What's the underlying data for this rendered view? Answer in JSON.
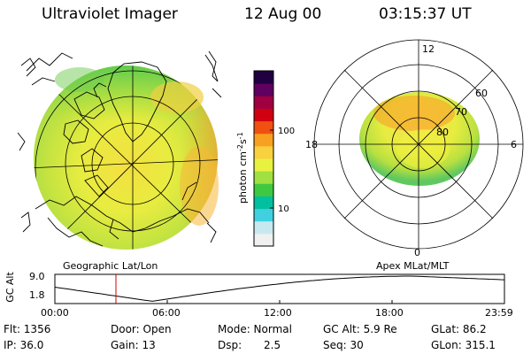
{
  "header": {
    "instrument": "Ultraviolet Imager",
    "date": "12 Aug 00",
    "time": "03:15:37 UT"
  },
  "colorbar": {
    "unit_label": "photon cm",
    "unit_exp1": "-2",
    "unit_mid": "s",
    "unit_exp2": "-1",
    "tick_labels": [
      "100",
      "10"
    ],
    "colors": [
      "#f0f0f0",
      "#c8e8f0",
      "#40d0e0",
      "#00c0a0",
      "#40c840",
      "#a0e040",
      "#e8f040",
      "#f8d040",
      "#f8a020",
      "#f05010",
      "#d00010",
      "#a00040",
      "#600060",
      "#200040"
    ]
  },
  "geo_map": {
    "label": "Geographic Lat/Lon"
  },
  "polar_plot": {
    "label": "Apex MLat/MLT",
    "mlt_labels": {
      "top": "12",
      "left": "18",
      "right": "6",
      "bottom": "0"
    },
    "lat_labels": [
      "60",
      "70",
      "80"
    ]
  },
  "altitude_plot": {
    "ylabel": "GC Alt",
    "ytick_top": "9.0",
    "ytick_bottom": "1.8",
    "xtick_labels": [
      "00:00",
      "06:00",
      "12:00",
      "18:00",
      "23:59"
    ],
    "current_time_marker_hours": 3.26,
    "orbit_min_hour": 5.2
  },
  "stats": {
    "flt": "Flt: 1356",
    "door": "Door: Open",
    "mode": "Mode: Normal",
    "gc_alt": "GC Alt: 5.9 Re",
    "glat": "GLat: 86.2",
    "ip": "IP: 36.0",
    "gain": "Gain: 13",
    "dsp_label": "Dsp:",
    "dsp_value": "2.5",
    "seq": "Seq: 30",
    "glon": "GLon: 315.1"
  }
}
